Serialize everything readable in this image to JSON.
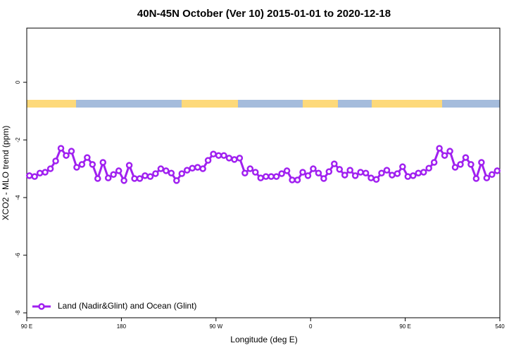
{
  "chart_data": {
    "type": "line",
    "title": "40N-45N October (Ver 10)   2015-01-01 to 2020-12-18",
    "xlabel": "Longitude (deg E)",
    "ylabel": "XCO2 - MLO trend (ppm)",
    "xlim": [
      90,
      540
    ],
    "ylim": [
      -8.17,
      1.88
    ],
    "xticks": [
      {
        "value": 90,
        "label": "90 E"
      },
      180,
      {
        "value": 270,
        "label": "90 W"
      },
      {
        "value": 360,
        "label": "0"
      },
      {
        "value": 450,
        "label": "90 E"
      },
      540
    ],
    "yticks": [
      0,
      -2,
      -4,
      -6,
      -8
    ],
    "legend": "bottom-left",
    "x": [
      92.5,
      97.5,
      102.5,
      107.5,
      112.5,
      117.5,
      122.5,
      127.5,
      132.5,
      137.5,
      142.5,
      147.5,
      152.5,
      157.5,
      162.5,
      167.5,
      172.5,
      177.5,
      182.5,
      187.5,
      192.5,
      197.5,
      202.5,
      207.5,
      212.5,
      217.5,
      222.5,
      227.5,
      232.5,
      237.5,
      242.5,
      247.5,
      252.5,
      257.5,
      262.5,
      267.5,
      272.5,
      277.5,
      282.5,
      287.5,
      292.5,
      297.5,
      302.5,
      307.5,
      312.5,
      317.5,
      322.5,
      327.5,
      332.5,
      337.5,
      342.5,
      347.5,
      352.5,
      357.5,
      362.5,
      367.5,
      372.5,
      377.5,
      382.5,
      387.5,
      392.5,
      397.5,
      402.5,
      407.5,
      412.5,
      417.5,
      422.5,
      427.5,
      432.5,
      437.5,
      442.5,
      447.5,
      452.5,
      457.5,
      462.5,
      467.5,
      472.5,
      477.5,
      482.5,
      487.5,
      492.5,
      497.5,
      502.5,
      507.5,
      512.5,
      517.5,
      522.5,
      527.5,
      532.5,
      537.5
    ],
    "series": [
      {
        "name": "Land (Nadir&Glint) and Ocean (Glint)",
        "color": "#a020f0",
        "values": [
          -3.24,
          -3.27,
          -3.15,
          -3.12,
          -3.0,
          -2.73,
          -2.29,
          -2.54,
          -2.39,
          -2.95,
          -2.85,
          -2.61,
          -2.85,
          -3.34,
          -2.78,
          -3.32,
          -3.2,
          -3.07,
          -3.41,
          -2.88,
          -3.34,
          -3.34,
          -3.24,
          -3.27,
          -3.17,
          -3.0,
          -3.07,
          -3.15,
          -3.41,
          -3.17,
          -3.05,
          -2.98,
          -2.95,
          -3.0,
          -2.71,
          -2.49,
          -2.54,
          -2.54,
          -2.63,
          -2.68,
          -2.63,
          -3.15,
          -3.0,
          -3.12,
          -3.32,
          -3.27,
          -3.27,
          -3.27,
          -3.17,
          -3.07,
          -3.39,
          -3.39,
          -3.12,
          -3.24,
          -3.0,
          -3.15,
          -3.34,
          -3.1,
          -2.83,
          -3.02,
          -3.22,
          -3.05,
          -3.24,
          -3.12,
          -3.15,
          -3.32,
          -3.37,
          -3.15,
          -3.05,
          -3.22,
          -3.17,
          -2.93,
          -3.27,
          -3.24,
          -3.15,
          -3.12,
          -2.98,
          -2.78,
          -2.29,
          -2.54,
          -2.39,
          -2.95,
          -2.85,
          -2.61,
          -2.85,
          -3.34,
          -2.78,
          -3.32,
          -3.2,
          -3.07
        ]
      }
    ]
  }
}
